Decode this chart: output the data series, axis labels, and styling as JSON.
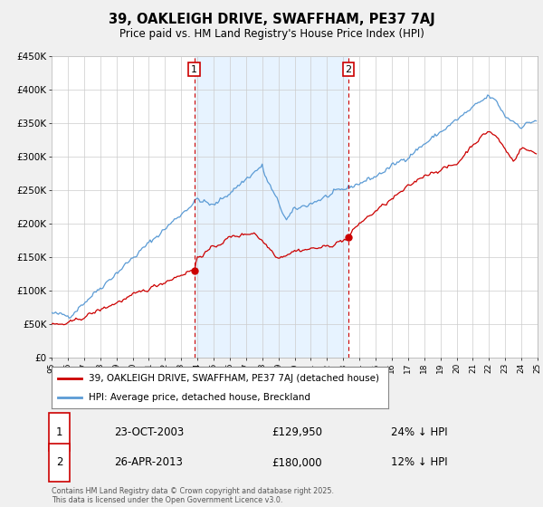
{
  "title": "39, OAKLEIGH DRIVE, SWAFFHAM, PE37 7AJ",
  "subtitle": "Price paid vs. HM Land Registry's House Price Index (HPI)",
  "hpi_label": "HPI: Average price, detached house, Breckland",
  "price_label": "39, OAKLEIGH DRIVE, SWAFFHAM, PE37 7AJ (detached house)",
  "ylim": [
    0,
    450000
  ],
  "yticks": [
    0,
    50000,
    100000,
    150000,
    200000,
    250000,
    300000,
    350000,
    400000,
    450000
  ],
  "ytick_labels": [
    "£0",
    "£50K",
    "£100K",
    "£150K",
    "£200K",
    "£250K",
    "£300K",
    "£350K",
    "£400K",
    "£450K"
  ],
  "sale1_date": "23-OCT-2003",
  "sale1_price": 129950,
  "sale1_hpi_diff": "24% ↓ HPI",
  "sale1_year": 2003.8,
  "sale2_date": "26-APR-2013",
  "sale2_price": 180000,
  "sale2_hpi_diff": "12% ↓ HPI",
  "sale2_year": 2013.33,
  "hpi_color": "#5b9bd5",
  "price_color": "#cc0000",
  "shade_color": "#ddeeff",
  "bg_color": "#f0f0f0",
  "plot_bg": "#ffffff",
  "grid_color": "#cccccc",
  "footer": "Contains HM Land Registry data © Crown copyright and database right 2025.\nThis data is licensed under the Open Government Licence v3.0."
}
